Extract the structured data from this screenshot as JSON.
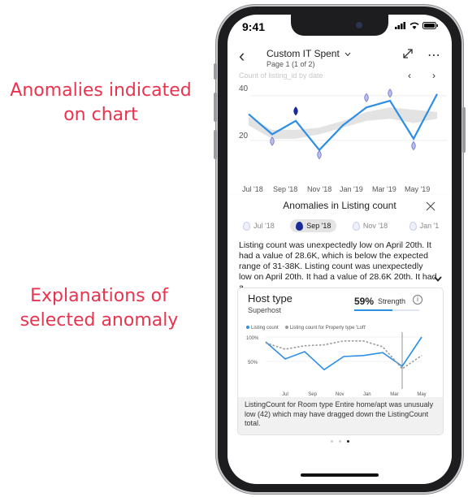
{
  "annotations": {
    "chart_callout": "Anomalies indicated on chart",
    "explanation_callout": "Explanations of selected anomaly"
  },
  "status_bar": {
    "time": "9:41"
  },
  "header": {
    "back_icon": "chevron-left-icon",
    "title": "Custom IT Spent",
    "subtitle": "Page 1 (1 of 2)",
    "expand_icon": "expand-icon",
    "more_icon": "more-icon"
  },
  "chart_data": {
    "type": "line",
    "title": "Count of listing_id by date",
    "x_ticks": [
      "Jul '18",
      "Sep '18",
      "Nov '18",
      "Jan '19",
      "Mar '19",
      "May '19"
    ],
    "y_ticks": [
      "40",
      "20"
    ],
    "ylim": [
      0,
      45
    ],
    "series": [
      {
        "values": [
          31,
          22,
          28,
          15,
          26,
          34,
          37,
          20,
          40
        ]
      }
    ],
    "expected_range_upper": [
      30,
      24,
      24,
      25,
      28,
      32,
      34,
      33,
      32
    ],
    "expected_range_lower": [
      26,
      20,
      20,
      22,
      25,
      28,
      29,
      27,
      29
    ],
    "anomalies": [
      {
        "index": 1,
        "value": 18.5,
        "selected": false
      },
      {
        "index": 2,
        "value": 32,
        "selected": true
      },
      {
        "index": 3,
        "value": 12.5,
        "selected": false
      },
      {
        "index": 5,
        "value": 38,
        "selected": false
      },
      {
        "index": 6,
        "value": 40,
        "selected": false
      },
      {
        "index": 7,
        "value": 16.5,
        "selected": false
      }
    ],
    "accent_color": "#2d8ee6"
  },
  "panel": {
    "title": "Anomalies in Listing count",
    "close_icon": "close-icon",
    "chips": [
      {
        "label": "Jul '18",
        "selected": false
      },
      {
        "label": "Sep '18",
        "selected": true
      },
      {
        "label": "Nov '18",
        "selected": false
      },
      {
        "label": "Jan '1",
        "selected": false
      }
    ],
    "explanation": "Listing count was unexpectedly low on April 20th. It had a value of 28.6K, which is below the expected range of 31-38K. Listing count was unexpectedly low on April 20th. It had a value of 28.6K 20th. It had a ...",
    "expand_icon": "chevron-down-icon",
    "card": {
      "title": "Host type",
      "subtitle": "Superhost",
      "strength_pct": "59%",
      "strength_label": "Strength",
      "strength_value": 0.59,
      "info_icon": "info-icon",
      "legend": [
        "Listing count",
        "Listing count for Property type 'Loft'"
      ],
      "y_ticks": [
        "100%",
        "50%"
      ],
      "x_ticks": [
        "Jul",
        "Sep",
        "Nov",
        "Jan",
        "Mar",
        "May"
      ],
      "mini_chart": {
        "type": "line",
        "series": [
          {
            "name": "Listing count",
            "values": [
              90,
              55,
              70,
              33,
              60,
              62,
              68,
              40,
              100
            ]
          },
          {
            "name": "Listing count for Property type 'Loft'",
            "values": [
              88,
              75,
              82,
              84,
              92,
              92,
              80,
              35,
              62
            ]
          }
        ]
      },
      "footnote": "ListingCount for Room type Entire home/apt was unusualy low (42) which may have dragged down the ListingCount total."
    },
    "pager": {
      "count": 3,
      "active": 2
    }
  }
}
